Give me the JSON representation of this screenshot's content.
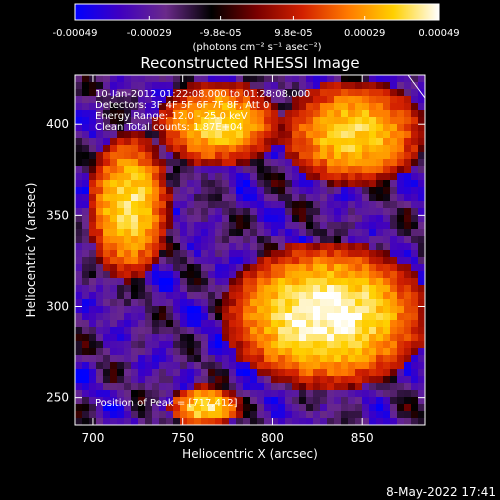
{
  "colorbar": {
    "tick_labels": [
      "-0.00049",
      "-0.00029",
      "-9.8e-05",
      "9.8e-05",
      "0.00029",
      "0.00049"
    ],
    "tick_values": [
      -0.00049,
      -0.00029,
      -9.8e-05,
      9.8e-05,
      0.00029,
      0.00049
    ],
    "range": [
      -0.00049,
      0.00049
    ],
    "label": "(photons cm⁻² s⁻¹ asec⁻²)",
    "colors": [
      "#0000ff",
      "#4000c0",
      "#6a2a8a",
      "#000000",
      "#7a0000",
      "#d22000",
      "#ff7a00",
      "#ffd000",
      "#ffffff"
    ]
  },
  "chart_data": {
    "type": "heatmap",
    "title": "Reconstructed RHESSI Image",
    "xlabel": "Heliocentric X (arcsec)",
    "ylabel": "Heliocentric Y (arcsec)",
    "xlim": [
      690,
      885
    ],
    "ylim": [
      235,
      427
    ],
    "xticks": [
      700,
      750,
      800,
      850
    ],
    "yticks": [
      250,
      300,
      350,
      400
    ],
    "xtick_labels": [
      "700",
      "750",
      "800",
      "850"
    ],
    "ytick_labels": [
      "250",
      "300",
      "350",
      "400"
    ],
    "grid": false,
    "value_range": [
      -0.00049,
      0.00049
    ],
    "bright_features": [
      {
        "x_from": 700,
        "x_to": 740,
        "y_from": 320,
        "y_to": 390,
        "level": 0.85
      },
      {
        "x_from": 780,
        "x_to": 880,
        "y_from": 260,
        "y_to": 330,
        "level": 1.0
      },
      {
        "x_from": 740,
        "x_to": 800,
        "y_from": 380,
        "y_to": 420,
        "level": 0.8
      },
      {
        "x_from": 810,
        "x_to": 880,
        "y_from": 370,
        "y_to": 420,
        "level": 0.8
      },
      {
        "x_from": 745,
        "x_to": 780,
        "y_from": 235,
        "y_to": 255,
        "level": 0.85
      }
    ],
    "annotations": [
      "10-Jan-2012 01:22:08.000 to 01:28:08.000",
      "Detectors: 3F 4F 5F 6F 7F 8F, Att 0",
      "Energy Range: 12.0 - 25.0 keV",
      "Clean    Total counts: 1.87E+04"
    ],
    "peak_label": "Position of Peak = [717,412]",
    "peak": [
      717,
      412
    ]
  },
  "footer": {
    "timestamp": "8-May-2022 17:41"
  }
}
